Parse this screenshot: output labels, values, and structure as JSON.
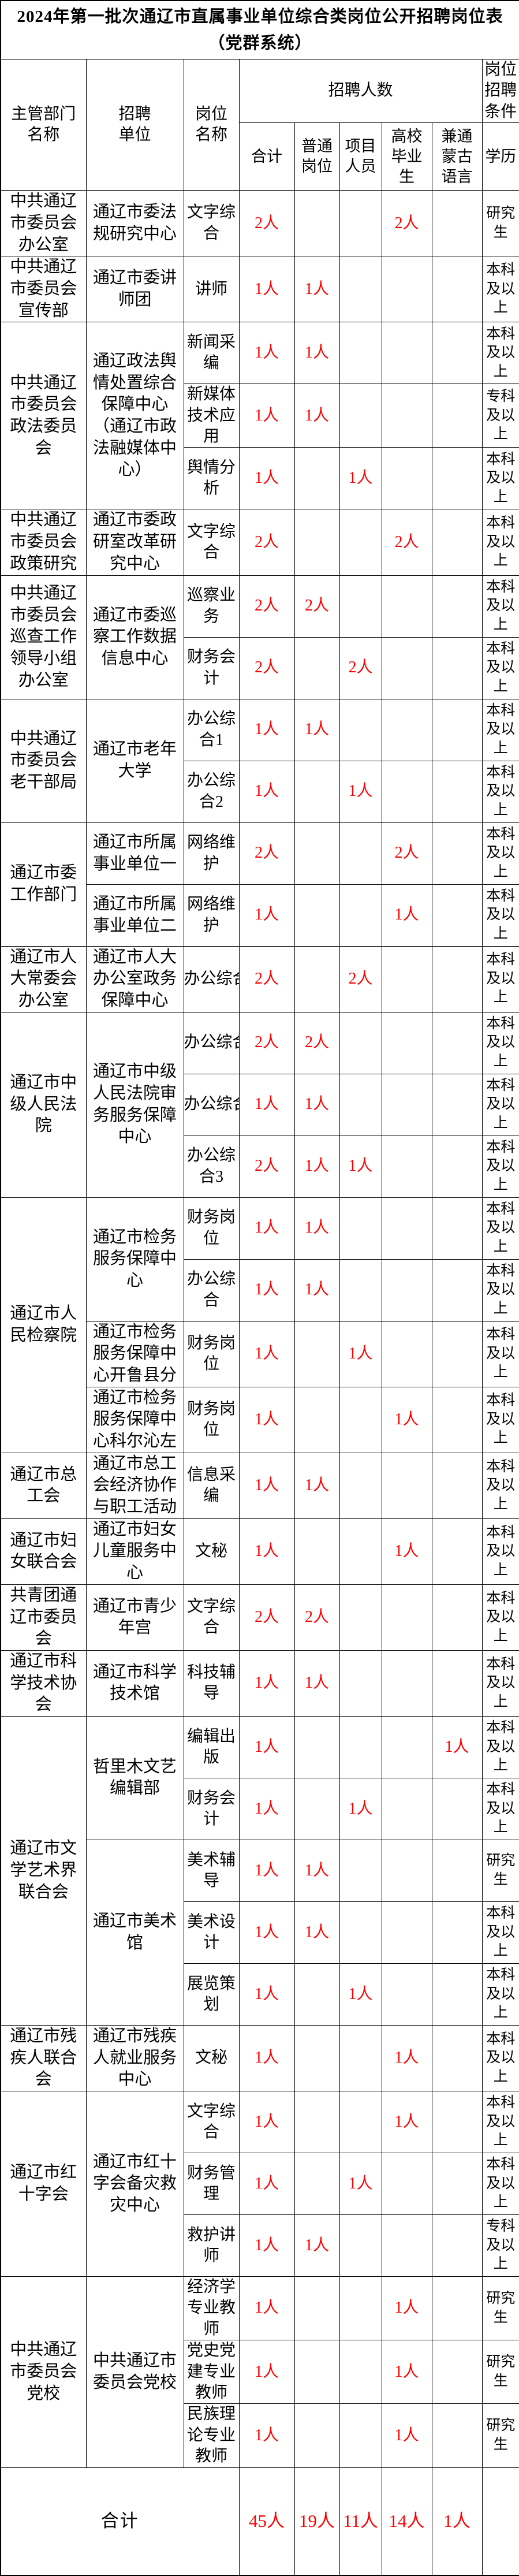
{
  "title": "2024年第一批次通辽市直属事业单位综合类岗位公开招聘岗位表\n（党群系统）",
  "colors": {
    "count_red": "#ff0000",
    "text": "#000000",
    "border": "#000000",
    "background": "#ffffff"
  },
  "header": {
    "dept": "主管部门\n名称",
    "unit": "招聘\n单位",
    "position": "岗位\n名称",
    "recruit_group": "招聘人数",
    "condition_group": "岗位\n招聘\n条件",
    "sub": {
      "total": "合计",
      "general": "普通\n岗位",
      "project": "项目\n人员",
      "graduate": "高校\n毕业\n生",
      "mongolian": "兼通\n蒙古\n语言",
      "education": "学历"
    }
  },
  "departments": [
    {
      "name": "中共通辽\n市委员会\n办公室",
      "units": [
        {
          "name": "通辽市委法\n规研究中心",
          "positions": [
            {
              "title": "文字综\n合",
              "total": "2人",
              "general": "",
              "project": "",
              "graduate": "2人",
              "mongolian": "",
              "education": "研究\n生"
            }
          ]
        }
      ]
    },
    {
      "name": "中共通辽\n市委员会\n宣传部",
      "units": [
        {
          "name": "通辽市委讲\n师团",
          "positions": [
            {
              "title": "讲师",
              "total": "1人",
              "general": "1人",
              "project": "",
              "graduate": "",
              "mongolian": "",
              "education": "本科\n及以\n上"
            }
          ]
        }
      ]
    },
    {
      "name": "中共通辽\n市委员会\n政法委员\n会",
      "units": [
        {
          "name": "通辽政法舆\n情处置综合\n保障中心\n（通辽市政\n法融媒体中\n心）",
          "positions": [
            {
              "title": "新闻采\n编",
              "total": "1人",
              "general": "1人",
              "project": "",
              "graduate": "",
              "mongolian": "",
              "education": "本科\n及以\n上"
            },
            {
              "title": "新媒体\n技术应\n用",
              "total": "1人",
              "general": "1人",
              "project": "",
              "graduate": "",
              "mongolian": "",
              "education": "专科\n及以\n上"
            },
            {
              "title": "舆情分\n析",
              "total": "1人",
              "general": "",
              "project": "1人",
              "graduate": "",
              "mongolian": "",
              "education": "本科\n及以\n上"
            }
          ]
        }
      ]
    },
    {
      "name": "中共通辽\n市委员会\n政策研究",
      "units": [
        {
          "name": "通辽市委政\n研室改革研\n究中心",
          "positions": [
            {
              "title": "文字综\n合",
              "total": "2人",
              "general": "",
              "project": "",
              "graduate": "2人",
              "mongolian": "",
              "education": "本科\n及以\n上"
            }
          ]
        }
      ]
    },
    {
      "name": "中共通辽\n市委员会\n巡查工作\n领导小组\n办公室",
      "units": [
        {
          "name": "通辽市委巡\n察工作数据\n信息中心",
          "positions": [
            {
              "title": "巡察业\n务",
              "total": "2人",
              "general": "2人",
              "project": "",
              "graduate": "",
              "mongolian": "",
              "education": "本科\n及以\n上"
            },
            {
              "title": "财务会\n计",
              "total": "2人",
              "general": "",
              "project": "2人",
              "graduate": "",
              "mongolian": "",
              "education": "本科\n及以\n上"
            }
          ]
        }
      ]
    },
    {
      "name": "中共通辽\n市委员会\n老干部局",
      "units": [
        {
          "name": "通辽市老年\n大学",
          "positions": [
            {
              "title": "办公综\n合1",
              "total": "1人",
              "general": "1人",
              "project": "",
              "graduate": "",
              "mongolian": "",
              "education": "本科\n及以\n上"
            },
            {
              "title": "办公综\n合2",
              "total": "1人",
              "general": "",
              "project": "1人",
              "graduate": "",
              "mongolian": "",
              "education": "本科\n及以\n上"
            }
          ]
        }
      ]
    },
    {
      "name": "通辽市委\n工作部门",
      "units": [
        {
          "name": "通辽市所属\n事业单位一",
          "positions": [
            {
              "title": "网络维\n护",
              "total": "2人",
              "general": "",
              "project": "",
              "graduate": "2人",
              "mongolian": "",
              "education": "本科\n及以\n上"
            }
          ]
        },
        {
          "name": "通辽市所属\n事业单位二",
          "positions": [
            {
              "title": "网络维\n护",
              "total": "1人",
              "general": "",
              "project": "",
              "graduate": "1人",
              "mongolian": "",
              "education": "本科\n及以\n上"
            }
          ]
        }
      ]
    },
    {
      "name": "通辽市人\n大常委会\n办公室",
      "units": [
        {
          "name": "通辽市人大\n办公室政务\n保障中心",
          "positions": [
            {
              "title": "办公综合",
              "clip": true,
              "total": "2人",
              "general": "",
              "project": "2人",
              "graduate": "",
              "mongolian": "",
              "education": "本科\n及以\n上"
            }
          ]
        }
      ]
    },
    {
      "name": "通辽市中\n级人民法\n院",
      "units": [
        {
          "name": "通辽市中级\n人民法院审\n务服务保障\n中心",
          "positions": [
            {
              "title": "办公综合",
              "clip": true,
              "total": "2人",
              "general": "2人",
              "project": "",
              "graduate": "",
              "mongolian": "",
              "education": "本科\n及以\n上"
            },
            {
              "title": "办公综合",
              "clip": true,
              "total": "1人",
              "general": "1人",
              "project": "",
              "graduate": "",
              "mongolian": "",
              "education": "本科\n及以\n上"
            },
            {
              "title": "办公综\n合3",
              "total": "2人",
              "general": "1人",
              "project": "1人",
              "graduate": "",
              "mongolian": "",
              "education": "本科\n及以\n上"
            }
          ]
        }
      ]
    },
    {
      "name": "通辽市人\n民检察院",
      "units": [
        {
          "name": "通辽市检务\n服务保障中\n心",
          "positions": [
            {
              "title": "财务岗\n位",
              "total": "1人",
              "general": "1人",
              "project": "",
              "graduate": "",
              "mongolian": "",
              "education": "本科\n及以\n上"
            },
            {
              "title": "办公综\n合",
              "total": "1人",
              "general": "1人",
              "project": "",
              "graduate": "",
              "mongolian": "",
              "education": "本科\n及以\n上"
            }
          ]
        },
        {
          "name": "通辽市检务\n服务保障中\n心开鲁县分",
          "positions": [
            {
              "title": "财务岗\n位",
              "total": "1人",
              "general": "",
              "project": "1人",
              "graduate": "",
              "mongolian": "",
              "education": "本科\n及以\n上"
            }
          ]
        },
        {
          "name": "通辽市检务\n服务保障中\n心科尔沁左",
          "positions": [
            {
              "title": "财务岗\n位",
              "total": "1人",
              "general": "",
              "project": "",
              "graduate": "1人",
              "mongolian": "",
              "education": "本科\n及以\n上"
            }
          ]
        }
      ]
    },
    {
      "name": "通辽市总\n工会",
      "units": [
        {
          "name": "通辽市总工\n会经济协作\n与职工活动",
          "positions": [
            {
              "title": "信息采\n编",
              "total": "1人",
              "general": "1人",
              "project": "",
              "graduate": "",
              "mongolian": "",
              "education": "本科\n及以\n上"
            }
          ]
        }
      ]
    },
    {
      "name": "通辽市妇\n女联合会",
      "units": [
        {
          "name": "通辽市妇女\n儿童服务中\n心",
          "positions": [
            {
              "title": "文秘",
              "total": "1人",
              "general": "",
              "project": "",
              "graduate": "1人",
              "mongolian": "",
              "education": "本科\n及以\n上"
            }
          ]
        }
      ]
    },
    {
      "name": "共青团通\n辽市委员\n会",
      "units": [
        {
          "name": "通辽市青少\n年宫",
          "positions": [
            {
              "title": "文字综\n合",
              "total": "2人",
              "general": "2人",
              "project": "",
              "graduate": "",
              "mongolian": "",
              "education": "本科\n及以\n上"
            }
          ]
        }
      ]
    },
    {
      "name": "通辽市科\n学技术协\n会",
      "units": [
        {
          "name": "通辽市科学\n技术馆",
          "positions": [
            {
              "title": "科技辅\n导",
              "total": "1人",
              "general": "1人",
              "project": "",
              "graduate": "",
              "mongolian": "",
              "education": "本科\n及以\n上"
            }
          ]
        }
      ]
    },
    {
      "name": "通辽市文\n学艺术界\n联合会",
      "units": [
        {
          "name": "哲里木文艺\n编辑部",
          "positions": [
            {
              "title": "编辑出\n版",
              "total": "1人",
              "general": "",
              "project": "",
              "graduate": "",
              "mongolian": "1人",
              "education": "本科\n及以\n上"
            },
            {
              "title": "财务会\n计",
              "total": "1人",
              "general": "",
              "project": "1人",
              "graduate": "",
              "mongolian": "",
              "education": "本科\n及以\n上"
            }
          ]
        },
        {
          "name": "通辽市美术\n馆",
          "positions": [
            {
              "title": "美术辅\n导",
              "total": "1人",
              "general": "1人",
              "project": "",
              "graduate": "",
              "mongolian": "",
              "education": "研究\n生"
            },
            {
              "title": "美术设\n计",
              "total": "1人",
              "general": "1人",
              "project": "",
              "graduate": "",
              "mongolian": "",
              "education": "本科\n及以\n上"
            },
            {
              "title": "展览策\n划",
              "total": "1人",
              "general": "",
              "project": "1人",
              "graduate": "",
              "mongolian": "",
              "education": "本科\n及以\n上"
            }
          ]
        }
      ]
    },
    {
      "name": "通辽市残\n疾人联合\n会",
      "units": [
        {
          "name": "通辽市残疾\n人就业服务\n中心",
          "positions": [
            {
              "title": "文秘",
              "total": "1人",
              "general": "",
              "project": "",
              "graduate": "1人",
              "mongolian": "",
              "education": "本科\n及以\n上"
            }
          ]
        }
      ]
    },
    {
      "name": "通辽市红\n十字会",
      "units": [
        {
          "name": "通辽市红十\n字会备灾救\n灾中心",
          "positions": [
            {
              "title": "文字综\n合",
              "total": "1人",
              "general": "",
              "project": "",
              "graduate": "1人",
              "mongolian": "",
              "education": "本科\n及以\n上"
            },
            {
              "title": "财务管\n理",
              "total": "1人",
              "general": "",
              "project": "1人",
              "graduate": "",
              "mongolian": "",
              "education": "本科\n及以\n上"
            },
            {
              "title": "救护讲\n师",
              "total": "1人",
              "general": "1人",
              "project": "",
              "graduate": "",
              "mongolian": "",
              "education": "专科\n及以\n上"
            }
          ]
        }
      ]
    },
    {
      "name": "中共通辽\n市委员会\n党校",
      "units": [
        {
          "name": "中共通辽市\n委员会党校",
          "positions": [
            {
              "title": "经济学\n专业教\n师",
              "total": "1人",
              "general": "",
              "project": "",
              "graduate": "1人",
              "mongolian": "",
              "education": "研究\n生"
            },
            {
              "title": "党史党\n建专业\n教师",
              "total": "1人",
              "general": "",
              "project": "",
              "graduate": "1人",
              "mongolian": "",
              "education": "研究\n生"
            },
            {
              "title": "民族理\n论专业\n教师",
              "total": "1人",
              "general": "",
              "project": "",
              "graduate": "1人",
              "mongolian": "",
              "education": "研究\n生"
            }
          ]
        }
      ]
    }
  ],
  "total_row": {
    "label": "合计",
    "total": "45人",
    "general": "19人",
    "project": "11人",
    "graduate": "14人",
    "mongolian": "1人",
    "education": ""
  }
}
